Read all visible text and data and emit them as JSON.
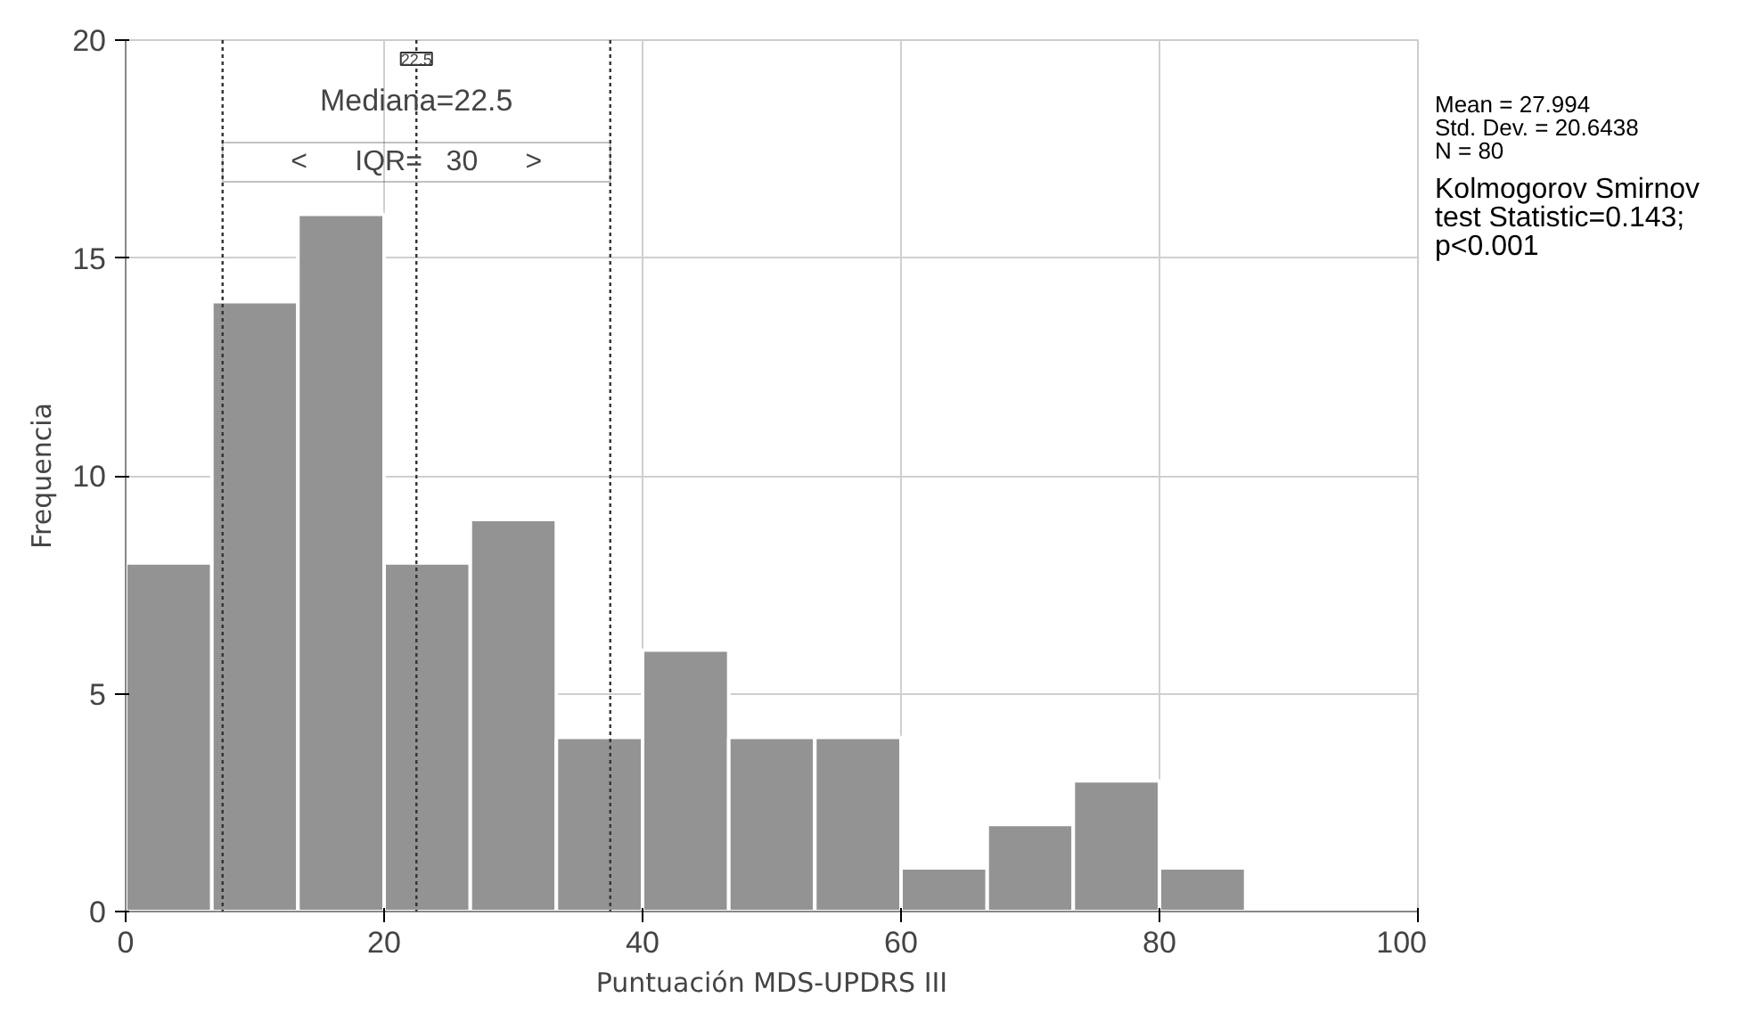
{
  "chart_data": {
    "type": "histogram",
    "xlabel": "Puntuación MDS-UPDRS III",
    "ylabel": "Frequencia",
    "color": "#939393",
    "bins": [
      0,
      6.67,
      13.33,
      20,
      26.67,
      33.33,
      40,
      46.67,
      53.33,
      60,
      66.67,
      73.33,
      80,
      86.67
    ],
    "values": [
      8,
      14,
      16,
      8,
      9,
      4,
      6,
      4,
      4,
      1,
      2,
      3,
      1
    ],
    "xlim": [
      0,
      100
    ],
    "xticks": [
      0,
      20,
      40,
      60,
      80,
      100
    ],
    "ylim": [
      0,
      20
    ],
    "yticks": [
      0,
      5,
      10,
      15,
      20
    ],
    "grid": true,
    "ref_lines": [
      {
        "axis": "x",
        "value": 7.5,
        "label": null,
        "line_style": "dotted"
      },
      {
        "axis": "x",
        "value": 22.5,
        "label": "22.5",
        "line_style": "dotted"
      },
      {
        "axis": "x",
        "value": 37.5,
        "label": null,
        "line_style": "dotted"
      }
    ],
    "annotations": [
      {
        "text": "Mediana=22.5",
        "x": 22.5,
        "y": 18.6
      },
      {
        "text": "<  IQR= 30  >",
        "x": 22.5,
        "y": 17.2
      },
      "Mean = 27.994\nStd. Dev. = 20.6438\nN = 80",
      "Kolmogorov Smirnov\ntest Statistic=0.143;\np<0.001"
    ]
  }
}
